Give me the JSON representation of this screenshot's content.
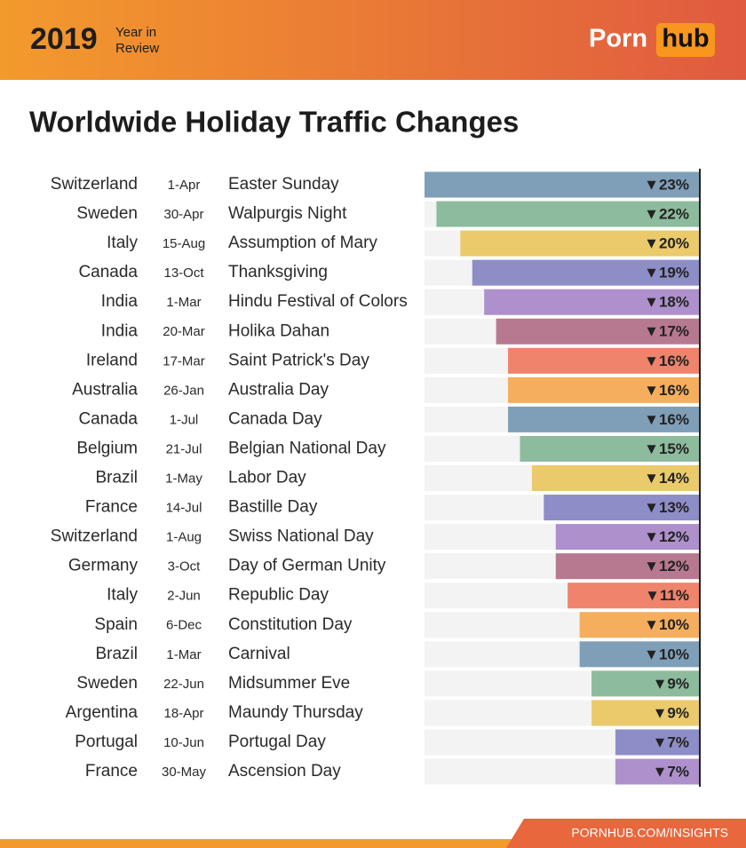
{
  "header": {
    "year": "2019",
    "subtitle_line1": "Year in",
    "subtitle_line2": "Review",
    "logo_part1": "Porn",
    "logo_part2": "hub"
  },
  "footer": "PORNHUB.COM/INSIGHTS",
  "chart_data": {
    "type": "bar",
    "title": "Worldwide Holiday Traffic Changes",
    "countries": [
      "Switzerland",
      "Sweden",
      "Italy",
      "Canada",
      "India",
      "India",
      "Ireland",
      "Australia",
      "Canada",
      "Belgium",
      "Brazil",
      "France",
      "Switzerland",
      "Germany",
      "Italy",
      "Spain",
      "Brazil",
      "Sweden",
      "Argentina",
      "Portugal",
      "France"
    ],
    "dates": [
      "1-Apr",
      "30-Apr",
      "15-Aug",
      "13-Oct",
      "1-Mar",
      "20-Mar",
      "17-Mar",
      "26-Jan",
      "1-Jul",
      "21-Jul",
      "1-May",
      "14-Jul",
      "1-Aug",
      "3-Oct",
      "2-Jun",
      "6-Dec",
      "1-Mar",
      "22-Jun",
      "18-Apr",
      "10-Jun",
      "30-May"
    ],
    "categories": [
      "Easter Sunday",
      "Walpurgis Night",
      "Assumption of Mary",
      "Thanksgiving",
      "Hindu Festival of Colors",
      "Holika Dahan",
      "Saint Patrick's Day",
      "Australia Day",
      "Canada Day",
      "Belgian National Day",
      "Labor Day",
      "Bastille Day",
      "Swiss National Day",
      "Day of German Unity",
      "Republic Day",
      "Constitution Day",
      "Carnival",
      "Midsummer Eve",
      "Maundy Thursday",
      "Portugal Day",
      "Ascension Day"
    ],
    "values": [
      -23,
      -22,
      -20,
      -19,
      -18,
      -17,
      -16,
      -16,
      -16,
      -15,
      -14,
      -13,
      -12,
      -12,
      -11,
      -10,
      -10,
      -9,
      -9,
      -7,
      -7
    ],
    "value_labels": [
      "▼23%",
      "▼22%",
      "▼20%",
      "▼19%",
      "▼18%",
      "▼17%",
      "▼16%",
      "▼16%",
      "▼16%",
      "▼15%",
      "▼14%",
      "▼13%",
      "▼12%",
      "▼12%",
      "▼11%",
      "▼10%",
      "▼10%",
      "▼9%",
      "▼9%",
      "▼7%",
      "▼7%"
    ],
    "colors": [
      "#7f9fb8",
      "#8dbb9d",
      "#ebca6c",
      "#8d8dc8",
      "#ae90cc",
      "#b7798f",
      "#ef836b",
      "#f5ae5d",
      "#7f9fb8",
      "#8dbb9d",
      "#ebca6c",
      "#8d8dc8",
      "#ae90cc",
      "#b7798f",
      "#ef836b",
      "#f5ae5d",
      "#7f9fb8",
      "#8dbb9d",
      "#ebca6c",
      "#8d8dc8",
      "#ae90cc"
    ]
  }
}
